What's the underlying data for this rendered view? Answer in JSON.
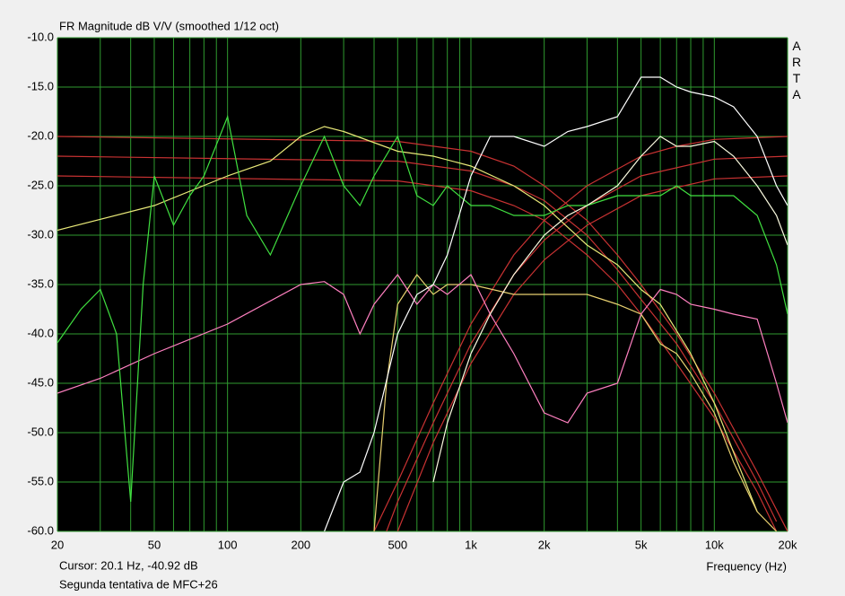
{
  "chart_data": {
    "type": "line",
    "title": "FR Magnitude dB V/V (smoothed 1/12 oct)",
    "watermark": "ARTA",
    "xlabel": "Frequency (Hz)",
    "cursor": "Cursor: 20.1 Hz, -40.92 dB",
    "caption": "Segunda tentativa de MFC+26",
    "xscale": "log",
    "xlim": [
      20,
      20000
    ],
    "ylim": [
      -60,
      -10
    ],
    "grid": true,
    "grid_color": "#2f9a2f",
    "background": "#000000",
    "xticks": [
      20,
      50,
      100,
      200,
      500,
      {
        "value": 1000,
        "label": "1k"
      },
      {
        "value": 2000,
        "label": "2k"
      },
      {
        "value": 5000,
        "label": "5k"
      },
      {
        "value": 10000,
        "label": "10k"
      },
      {
        "value": 20000,
        "label": "20k"
      }
    ],
    "xgrid": [
      30,
      40,
      60,
      70,
      80,
      90,
      300,
      400,
      600,
      700,
      800,
      900,
      3000,
      4000,
      6000,
      7000,
      8000,
      9000
    ],
    "yticks": [
      {
        "value": -10,
        "label": "-10.0"
      },
      {
        "value": -15,
        "label": "-15.0"
      },
      {
        "value": -20,
        "label": "-20.0"
      },
      {
        "value": -25,
        "label": "-25.0"
      },
      {
        "value": -30,
        "label": "-30.0"
      },
      {
        "value": -35,
        "label": "-35.0"
      },
      {
        "value": -40,
        "label": "-40.0"
      },
      {
        "value": -45,
        "label": "-45.0"
      },
      {
        "value": -50,
        "label": "-50.0"
      },
      {
        "value": -55,
        "label": "-55.0"
      },
      {
        "value": -60,
        "label": "-60.0"
      }
    ],
    "series": [
      {
        "color": "#c83232",
        "x": [
          20,
          500,
          1000,
          1500,
          2000,
          3000,
          4000,
          5000,
          7000,
          10000,
          15000,
          20000
        ],
        "values": [
          -20,
          -20.5,
          -21.5,
          -23,
          -25,
          -28.5,
          -32,
          -35,
          -40,
          -46,
          -54,
          -60
        ]
      },
      {
        "color": "#c83232",
        "x": [
          20,
          500,
          1000,
          1500,
          2000,
          3000,
          4000,
          5000,
          7000,
          10000,
          15000,
          18000
        ],
        "values": [
          -22,
          -22.5,
          -23.5,
          -25,
          -26.5,
          -30,
          -33.5,
          -36.5,
          -41,
          -47,
          -55,
          -59
        ]
      },
      {
        "color": "#c83232",
        "x": [
          20,
          500,
          1000,
          1500,
          2000,
          3000,
          4000,
          5000,
          7000,
          10000,
          15000,
          18000
        ],
        "values": [
          -24,
          -24.5,
          -25.5,
          -27,
          -28.5,
          -32,
          -35,
          -38,
          -43,
          -48.5,
          -56,
          -60
        ]
      },
      {
        "color": "#c83232",
        "x": [
          400,
          500,
          700,
          1000,
          1500,
          2000,
          3000,
          5000,
          7000,
          10000,
          20000
        ],
        "values": [
          -60,
          -55,
          -47,
          -39,
          -32,
          -28.5,
          -25,
          -22,
          -21,
          -20.3,
          -20
        ]
      },
      {
        "color": "#c83232",
        "x": [
          450,
          500,
          700,
          1000,
          1500,
          2000,
          3000,
          5000,
          10000,
          20000
        ],
        "values": [
          -60,
          -57,
          -49,
          -41,
          -34,
          -30.5,
          -27,
          -24,
          -22.3,
          -22
        ]
      },
      {
        "color": "#c83232",
        "x": [
          500,
          700,
          1000,
          1500,
          2000,
          3000,
          5000,
          10000,
          20000
        ],
        "values": [
          -60,
          -51,
          -43,
          -36,
          -32.5,
          -29,
          -26,
          -24.3,
          -24
        ]
      },
      {
        "color": "#e8e878",
        "x": [
          20,
          50,
          100,
          150,
          200,
          250,
          300,
          500,
          700,
          1000,
          1500,
          2000,
          3000,
          4000,
          5000,
          6000,
          8000,
          10000,
          12000,
          15000
        ],
        "values": [
          -29.5,
          -27,
          -24,
          -22.5,
          -20,
          -19,
          -19.5,
          -21.5,
          -22,
          -23,
          -25,
          -27,
          -31,
          -33,
          -35.5,
          -37,
          -42,
          -47,
          -52,
          -58
        ]
      },
      {
        "color": "#e8d070",
        "x": [
          400,
          450,
          500,
          600,
          700,
          800,
          1000,
          1500,
          2000,
          3000,
          4000,
          5000,
          6000,
          7000,
          8000,
          10000,
          12000,
          15000,
          18000
        ],
        "values": [
          -60,
          -45,
          -37,
          -34,
          -36,
          -35,
          -35,
          -36,
          -36,
          -36,
          -37,
          -38,
          -41,
          -42,
          -44,
          -48,
          -53,
          -58,
          -60
        ]
      },
      {
        "color": "#ff80c0",
        "x": [
          20,
          30,
          50,
          100,
          200,
          250,
          300,
          350,
          400,
          500,
          600,
          700,
          800,
          1000,
          1200,
          1500,
          2000,
          2500,
          3000,
          4000,
          5000,
          6000,
          7000,
          8000,
          10000,
          12000,
          15000,
          18000,
          20000
        ],
        "values": [
          -46,
          -44.5,
          -42,
          -39,
          -35,
          -34.7,
          -36,
          -40,
          -37,
          -34,
          -37,
          -35,
          -36,
          -34,
          -38,
          -42,
          -48,
          -49,
          -46,
          -45,
          -38,
          -35.5,
          -36,
          -37,
          -37.5,
          -38,
          -38.5,
          -45,
          -49
        ]
      },
      {
        "color": "#40e040",
        "x": [
          20,
          25,
          30,
          35,
          40,
          45,
          50,
          60,
          70,
          80,
          100,
          120,
          150,
          200,
          250,
          300,
          350,
          400,
          500,
          600,
          700,
          800,
          1000,
          1200,
          1500,
          2000,
          2500,
          3000,
          4000,
          5000,
          6000,
          7000,
          8000,
          10000,
          12000,
          15000,
          18000,
          20000
        ],
        "values": [
          -40.9,
          -37.5,
          -35.5,
          -40,
          -57,
          -35,
          -24,
          -29,
          -26,
          -24,
          -18,
          -28,
          -32,
          -25,
          -20,
          -25,
          -27,
          -24,
          -20,
          -26,
          -27,
          -25,
          -27,
          -27,
          -28,
          -28,
          -27,
          -27,
          -26,
          -26,
          -26,
          -25,
          -26,
          -26,
          -26,
          -28,
          -33,
          -38
        ]
      },
      {
        "color": "#fbfbe0",
        "x": [
          700,
          800,
          1000,
          1200,
          1500,
          2000,
          2500,
          3000,
          4000,
          5000,
          6000,
          7000,
          8000,
          10000,
          12000,
          15000,
          18000,
          20000
        ],
        "values": [
          -55,
          -49,
          -42,
          -38,
          -34,
          -30,
          -28,
          -27,
          -25,
          -22,
          -20,
          -21,
          -21,
          -20.5,
          -22,
          -25,
          -28,
          -31
        ]
      },
      {
        "color": "#ffffff",
        "x": [
          250,
          300,
          350,
          400,
          500,
          600,
          700,
          800,
          1000,
          1200,
          1500,
          2000,
          2500,
          3000,
          4000,
          5000,
          6000,
          7000,
          8000,
          10000,
          12000,
          15000,
          18000,
          20000
        ],
        "values": [
          -60,
          -55,
          -54,
          -50,
          -40,
          -36,
          -35,
          -32,
          -24,
          -20,
          -20,
          -21,
          -19.5,
          -19,
          -18,
          -14,
          -14,
          -15,
          -15.5,
          -16,
          -17,
          -20,
          -25,
          -27
        ]
      }
    ]
  }
}
